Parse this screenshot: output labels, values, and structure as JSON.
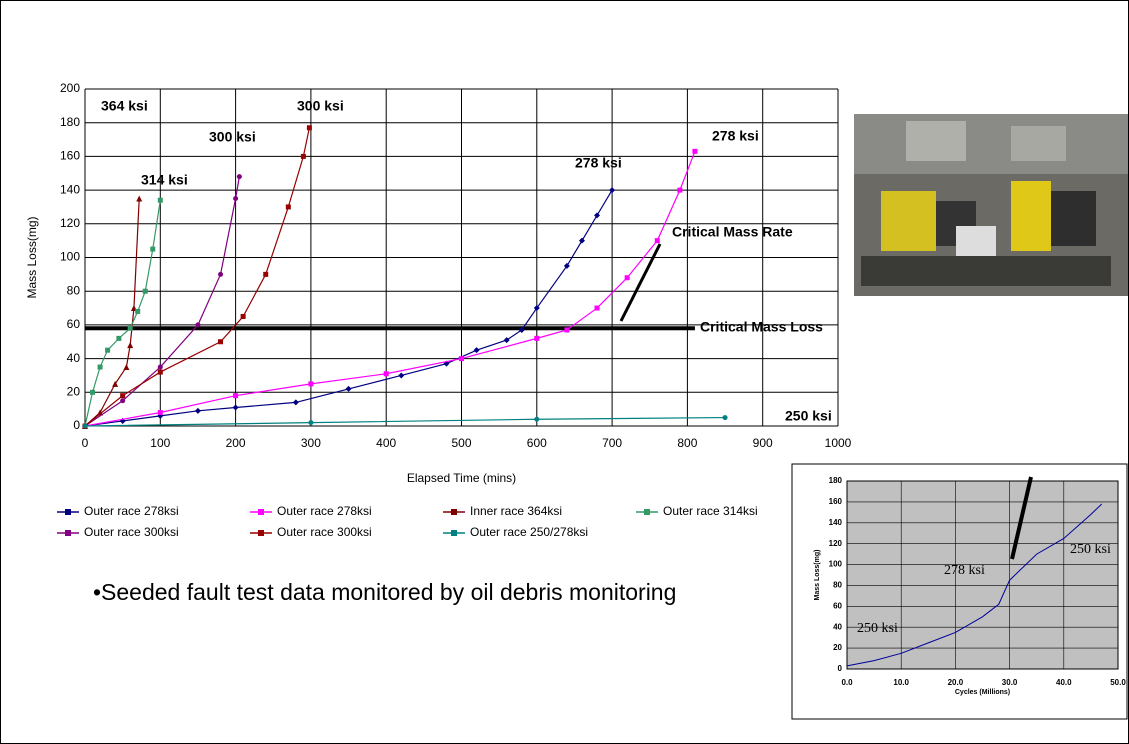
{
  "chart_data": [
    {
      "type": "line",
      "x_label": "Elapsed Time (mins)",
      "y_label": "Mass Loss(mg)",
      "xlim": [
        0,
        1000
      ],
      "ylim": [
        0,
        200
      ],
      "xticks": [
        0,
        100,
        200,
        300,
        400,
        500,
        600,
        700,
        800,
        900,
        1000
      ],
      "yticks": [
        0,
        20,
        40,
        60,
        80,
        100,
        120,
        140,
        160,
        180,
        200
      ],
      "grid": true,
      "hline": 58,
      "series": [
        {
          "name": "Outer race 278ksi",
          "color": "#000080",
          "marker": "diamond",
          "x": [
            0,
            50,
            100,
            150,
            200,
            280,
            350,
            420,
            480,
            520,
            560,
            580,
            600,
            640,
            660,
            680,
            700
          ],
          "values": [
            0,
            3,
            6,
            9,
            11,
            14,
            22,
            30,
            37,
            45,
            51,
            57,
            70,
            95,
            110,
            125,
            140
          ]
        },
        {
          "name": "Outer race 278ksi",
          "color": "#ff00ff",
          "marker": "square",
          "x": [
            0,
            100,
            200,
            300,
            400,
            500,
            600,
            640,
            680,
            720,
            760,
            790,
            810
          ],
          "values": [
            0,
            8,
            18,
            25,
            31,
            40,
            52,
            57,
            70,
            88,
            110,
            140,
            163
          ]
        },
        {
          "name": "Inner race 364ksi",
          "color": "#800000",
          "marker": "triangle",
          "x": [
            0,
            20,
            40,
            55,
            60,
            65,
            72
          ],
          "values": [
            0,
            8,
            25,
            35,
            48,
            70,
            135
          ]
        },
        {
          "name": "Outer race 314ksi",
          "color": "#339966",
          "marker": "square",
          "x": [
            0,
            10,
            20,
            30,
            45,
            60,
            70,
            80,
            90,
            100
          ],
          "values": [
            0,
            20,
            35,
            45,
            52,
            58,
            68,
            80,
            105,
            134
          ]
        },
        {
          "name": "Outer race 300ksi",
          "color": "#800080",
          "marker": "circle",
          "x": [
            0,
            50,
            100,
            150,
            180,
            200,
            205
          ],
          "values": [
            0,
            15,
            35,
            60,
            90,
            135,
            148
          ]
        },
        {
          "name": "Outer race 300ksi",
          "color": "#990000",
          "marker": "square",
          "x": [
            0,
            50,
            100,
            180,
            210,
            240,
            270,
            290,
            298
          ],
          "values": [
            0,
            18,
            32,
            50,
            65,
            90,
            130,
            160,
            177
          ]
        },
        {
          "name": "Outer race 250/278ksi",
          "color": "#008080",
          "marker": "circle",
          "x": [
            0,
            300,
            600,
            850
          ],
          "values": [
            0,
            2,
            4,
            5
          ]
        }
      ],
      "annotations": [
        "364 ksi",
        "300 ksi",
        "300 ksi",
        "314 ksi",
        "278 ksi",
        "278 ksi",
        "250 ksi",
        "Critical Mass Rate",
        "Critical Mass Loss"
      ]
    },
    {
      "type": "line",
      "x_label": "Cycles (Millions)",
      "y_label": "Mass Loss(mg)",
      "xlim": [
        0,
        50
      ],
      "ylim": [
        0,
        180
      ],
      "xticks": [
        {
          "value": 0,
          "label": "0.0"
        },
        {
          "value": 10,
          "label": "10.0"
        },
        {
          "value": 20,
          "label": "20.0"
        },
        {
          "value": 30,
          "label": "30.0"
        },
        {
          "value": 40,
          "label": "40.0"
        },
        {
          "value": 50,
          "label": "50.0"
        }
      ],
      "yticks": [
        0,
        20,
        40,
        60,
        80,
        100,
        120,
        140,
        160,
        180
      ],
      "grid": true,
      "series": [
        {
          "color": "#000099",
          "x": [
            0,
            5,
            10,
            15,
            20,
            25,
            28,
            30,
            32,
            35,
            40,
            45,
            47
          ],
          "values": [
            3,
            8,
            15,
            25,
            35,
            50,
            62,
            85,
            95,
            110,
            125,
            148,
            158
          ]
        }
      ],
      "annotations": [
        "278 ksi",
        "250 ksi",
        "250 ksi"
      ]
    }
  ],
  "bullet": "•Seeded fault test data monitored by oil debris monitoring"
}
